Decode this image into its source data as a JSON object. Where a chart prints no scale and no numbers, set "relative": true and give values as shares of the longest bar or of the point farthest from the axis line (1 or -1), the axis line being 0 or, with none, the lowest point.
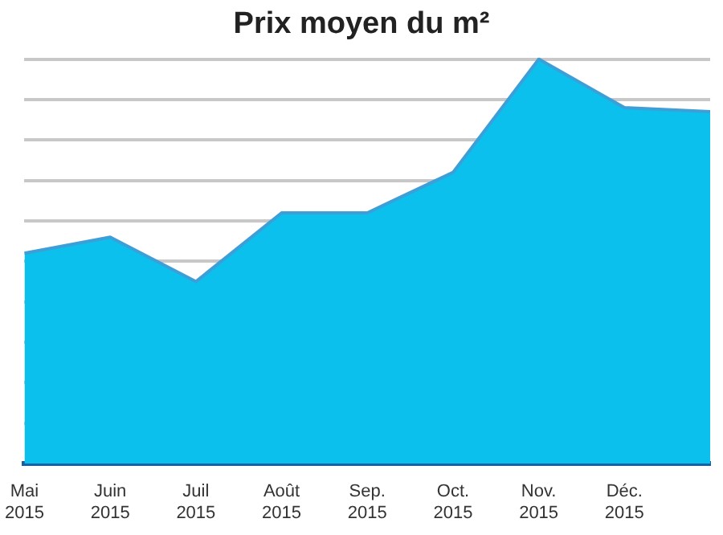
{
  "chart_data": {
    "type": "area",
    "title": "Prix moyen du m²",
    "categories": [
      "Mai 2015",
      "Juin 2015",
      "Juil 2015",
      "Août 2015",
      "Sep. 2015",
      "Oct. 2015",
      "Nov. 2015",
      "Déc. 2015",
      null
    ],
    "values": [
      0.52,
      0.56,
      0.45,
      0.62,
      0.62,
      0.72,
      1,
      0.88,
      0.87
    ],
    "color": "#0bc0ec",
    "relative": true,
    "grid": "y"
  }
}
